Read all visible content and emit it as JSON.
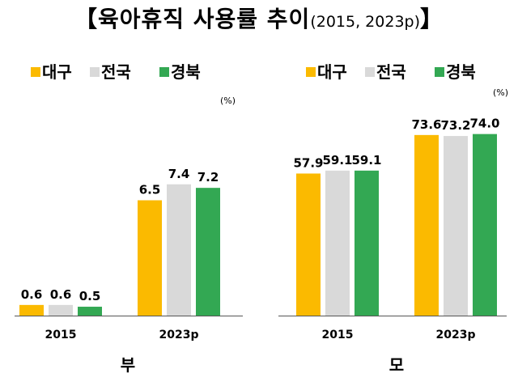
{
  "title": {
    "open_bracket": "【",
    "main": "육아휴직 사용률 추이",
    "sub": "(2015,  2023p)",
    "close_bracket": "】"
  },
  "chart_data": [
    {
      "type": "bar",
      "panel_label": "부",
      "unit": "(%)",
      "categories": [
        "2015",
        "2023p"
      ],
      "series": [
        {
          "name": "대구",
          "values": [
            0.6,
            6.5
          ]
        },
        {
          "name": "전국",
          "values": [
            0.6,
            7.4
          ]
        },
        {
          "name": "경북",
          "values": [
            0.5,
            7.2
          ]
        }
      ],
      "ylim": [
        0,
        13
      ],
      "legend_position": "top",
      "grid": false
    },
    {
      "type": "bar",
      "panel_label": "모",
      "unit": "(%)",
      "categories": [
        "2015",
        "2023p"
      ],
      "series": [
        {
          "name": "대구",
          "values": [
            57.9,
            73.6
          ]
        },
        {
          "name": "전국",
          "values": [
            59.1,
            73.2
          ]
        },
        {
          "name": "경북",
          "values": [
            59.1,
            74.0
          ]
        }
      ],
      "ylim": [
        0,
        94
      ],
      "legend_position": "top",
      "grid": false
    }
  ],
  "colors": {
    "대구": "#FBBA00",
    "전국": "#D9D9D9",
    "경북": "#33A853",
    "axis": "#555555"
  }
}
